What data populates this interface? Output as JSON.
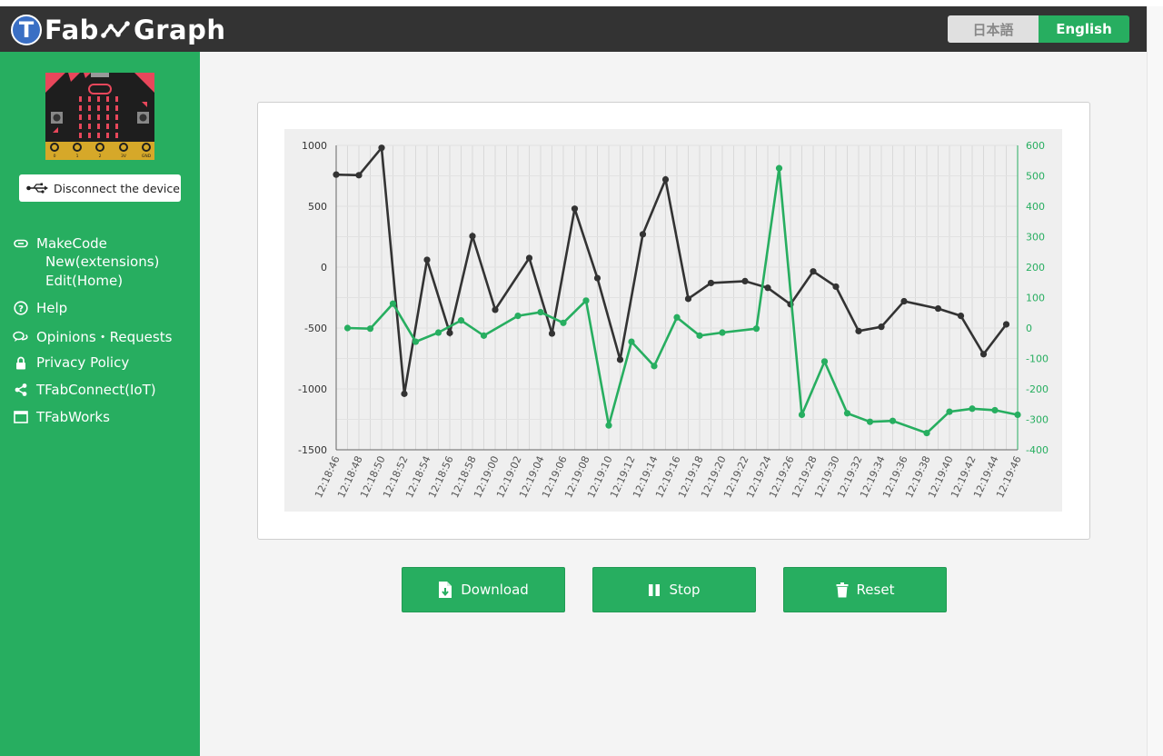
{
  "app": {
    "logo_letter": "T",
    "logo_part1": "Fab",
    "logo_part2": "Graph"
  },
  "language": {
    "japanese": "日本語",
    "english": "English",
    "selected": "English"
  },
  "device": {
    "disconnect_label": "Disconnect the device",
    "microbit_pins": [
      "0",
      "1",
      "2",
      "3V",
      "GND"
    ]
  },
  "nav": {
    "makecode": "MakeCode",
    "makecode_new": "New(extensions)",
    "makecode_edit": "Edit(Home)",
    "help": "Help",
    "opinions": "Opinions・Requests",
    "privacy": "Privacy Policy",
    "tfabconnect": "TFabConnect(IoT)",
    "tfabworks": "TFabWorks"
  },
  "buttons": {
    "download": "Download",
    "stop": "Stop",
    "reset": "Reset"
  },
  "colors": {
    "brand_green": "#27ae60",
    "header": "#333333",
    "series_dark": "#333333",
    "series_green": "#27ae60"
  },
  "chart_data": {
    "type": "line",
    "x": [
      "12:18:46",
      "12:18:47",
      "12:18:48",
      "12:18:49",
      "12:18:50",
      "12:18:51",
      "12:18:52",
      "12:18:53",
      "12:18:54",
      "12:18:55",
      "12:18:56",
      "12:18:57",
      "12:18:58",
      "12:18:59",
      "12:19:00",
      "12:19:01",
      "12:19:02",
      "12:19:03",
      "12:19:04",
      "12:19:05",
      "12:19:06",
      "12:19:07",
      "12:19:08",
      "12:19:09",
      "12:19:10",
      "12:19:11",
      "12:19:12",
      "12:19:13",
      "12:19:14",
      "12:19:15",
      "12:19:16",
      "12:19:17",
      "12:19:18",
      "12:19:19",
      "12:19:20",
      "12:19:21",
      "12:19:22",
      "12:19:23",
      "12:19:24",
      "12:19:25",
      "12:19:26",
      "12:19:27",
      "12:19:28",
      "12:19:29",
      "12:19:30",
      "12:19:31",
      "12:19:32",
      "12:19:33",
      "12:19:34",
      "12:19:35",
      "12:19:36",
      "12:19:37",
      "12:19:38",
      "12:19:39",
      "12:19:40",
      "12:19:41",
      "12:19:42",
      "12:19:43",
      "12:19:44",
      "12:19:45",
      "12:19:46"
    ],
    "x_tick_labels": [
      "12:18:46",
      "12:18:48",
      "12:18:50",
      "12:18:52",
      "12:18:54",
      "12:18:56",
      "12:18:58",
      "12:19:00",
      "12:19:02",
      "12:19:04",
      "12:19:06",
      "12:19:08",
      "12:19:10",
      "12:19:12",
      "12:19:14",
      "12:19:16",
      "12:19:18",
      "12:19:20",
      "12:19:22",
      "12:19:24",
      "12:19:26",
      "12:19:28",
      "12:19:30",
      "12:19:32",
      "12:19:34",
      "12:19:36",
      "12:19:38",
      "12:19:40",
      "12:19:42",
      "12:19:44",
      "12:19:46"
    ],
    "y_left": {
      "range": [
        -1500,
        1000
      ],
      "ticks": [
        1000,
        500,
        0,
        -500,
        -1000,
        -1500
      ]
    },
    "y_right": {
      "range": [
        -400,
        600
      ],
      "ticks": [
        600,
        500,
        400,
        300,
        200,
        100,
        0,
        -100,
        -200,
        -300,
        -400
      ]
    },
    "grid": true,
    "series": [
      {
        "axis": "left",
        "color": "#333333",
        "points": [
          [
            "12:18:46",
            760
          ],
          [
            "12:18:48",
            755
          ],
          [
            "12:18:50",
            980
          ],
          [
            "12:18:52",
            -1040
          ],
          [
            "12:18:54",
            60
          ],
          [
            "12:18:56",
            -540
          ],
          [
            "12:18:58",
            255
          ],
          [
            "12:19:00",
            -350
          ],
          [
            "12:19:03",
            75
          ],
          [
            "12:19:05",
            -545
          ],
          [
            "12:19:07",
            480
          ],
          [
            "12:19:09",
            -90
          ],
          [
            "12:19:11",
            -760
          ],
          [
            "12:19:13",
            270
          ],
          [
            "12:19:15",
            720
          ],
          [
            "12:19:17",
            -260
          ],
          [
            "12:19:19",
            -130
          ],
          [
            "12:19:22",
            -115
          ],
          [
            "12:19:24",
            -170
          ],
          [
            "12:19:26",
            -305
          ],
          [
            "12:19:28",
            -35
          ],
          [
            "12:19:30",
            -160
          ],
          [
            "12:19:32",
            -525
          ],
          [
            "12:19:34",
            -490
          ],
          [
            "12:19:36",
            -280
          ],
          [
            "12:19:39",
            -340
          ],
          [
            "12:19:41",
            -400
          ],
          [
            "12:19:43",
            -715
          ],
          [
            "12:19:45",
            -470
          ]
        ]
      },
      {
        "axis": "right",
        "color": "#27ae60",
        "points": [
          [
            "12:18:47",
            0
          ],
          [
            "12:18:49",
            -2
          ],
          [
            "12:18:51",
            80
          ],
          [
            "12:18:53",
            -45
          ],
          [
            "12:18:55",
            -15
          ],
          [
            "12:18:57",
            25
          ],
          [
            "12:18:59",
            -25
          ],
          [
            "12:19:02",
            40
          ],
          [
            "12:19:04",
            52
          ],
          [
            "12:19:06",
            17
          ],
          [
            "12:19:08",
            90
          ],
          [
            "12:19:10",
            -320
          ],
          [
            "12:19:12",
            -45
          ],
          [
            "12:19:14",
            -125
          ],
          [
            "12:19:16",
            35
          ],
          [
            "12:19:18",
            -25
          ],
          [
            "12:19:20",
            -15
          ],
          [
            "12:19:23",
            -2
          ],
          [
            "12:19:25",
            525
          ],
          [
            "12:19:27",
            -285
          ],
          [
            "12:19:29",
            -110
          ],
          [
            "12:19:31",
            -280
          ],
          [
            "12:19:33",
            -308
          ],
          [
            "12:19:35",
            -305
          ],
          [
            "12:19:38",
            -345
          ],
          [
            "12:19:40",
            -275
          ],
          [
            "12:19:42",
            -265
          ],
          [
            "12:19:44",
            -270
          ],
          [
            "12:19:46",
            -285
          ]
        ]
      }
    ]
  }
}
